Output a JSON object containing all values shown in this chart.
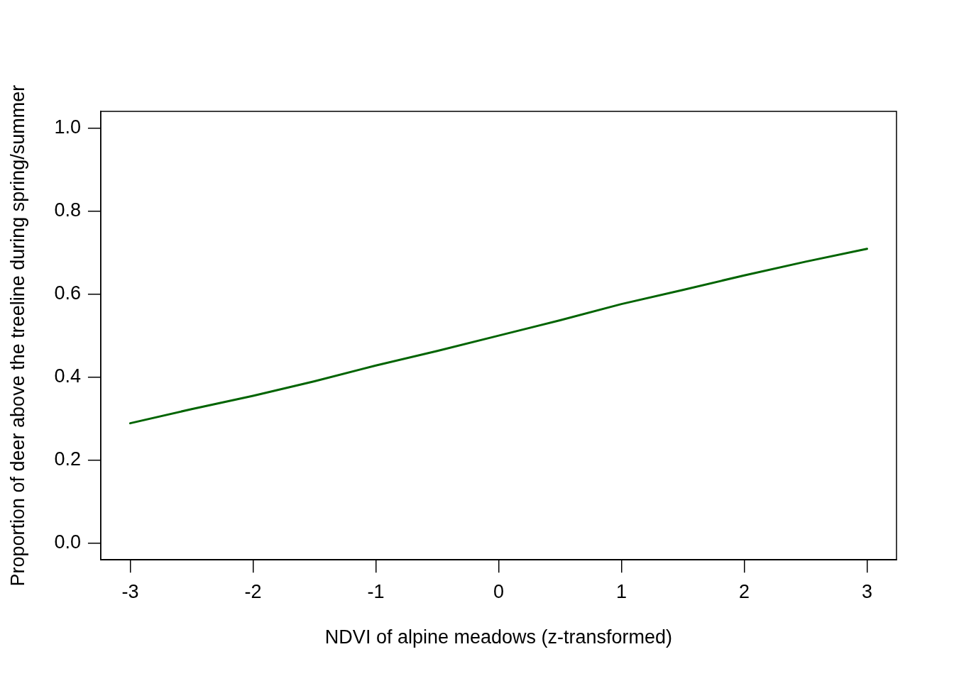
{
  "chart_data": {
    "type": "line",
    "xlabel": "NDVI of alpine meadows (z-transformed)",
    "ylabel": "Proportion of deer above the treeline during spring/summer",
    "x": [
      -3,
      -2.5,
      -2,
      -1.5,
      -1,
      -0.5,
      0,
      0.5,
      1,
      1.5,
      2,
      2.5,
      3
    ],
    "series": [
      {
        "color": "#006400",
        "values": [
          0.289,
          0.323,
          0.355,
          0.39,
          0.428,
          0.463,
          0.5,
          0.537,
          0.576,
          0.61,
          0.645,
          0.678,
          0.709
        ]
      }
    ],
    "xlim": [
      -3.24,
      3.24
    ],
    "xticks": [
      -3,
      -2,
      -1,
      0,
      1,
      2,
      3
    ],
    "ylim": [
      -0.04,
      1.04
    ],
    "yticks": [
      {
        "value": 0,
        "label": "0.0"
      },
      {
        "value": 0.2,
        "label": "0.2"
      },
      {
        "value": 0.4,
        "label": "0.4"
      },
      {
        "value": 0.6,
        "label": "0.6"
      },
      {
        "value": 0.8,
        "label": "0.8"
      },
      {
        "value": 1,
        "label": "1.0"
      }
    ],
    "grid": false,
    "legend": false,
    "marker": "none",
    "line_style": "solid"
  }
}
